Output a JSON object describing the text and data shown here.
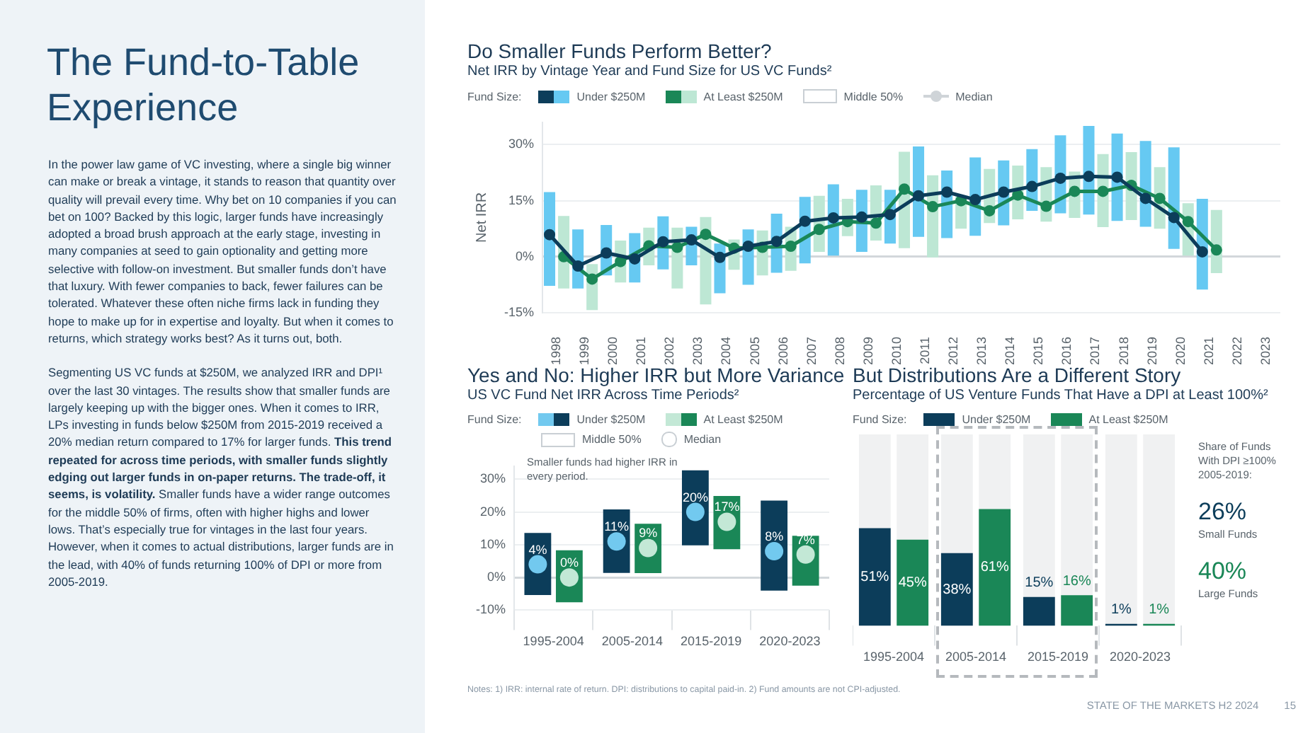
{
  "chart_data": [
    {
      "type": "other",
      "title": "The Fund-to-Table Experience",
      "annotations": [
        "In the power law game of VC investing, where a single big winner can make or break a vintage, it stands to reason that quantity over quality will prevail every time. Why bet on 10 companies if you can bet on 100? Backed by this logic, larger funds have increasingly adopted a broad brush approach at the early stage, investing in many companies at seed to gain optionality and getting more selective with follow-on investment. But smaller funds don’t have that luxury. With fewer companies to back, fewer failures can be tolerated. Whatever these often niche firms lack in funding they hope to make up for in expertise and loyalty. But when it comes to returns, which strategy works best? As it turns out, both.",
        "Segmenting US VC funds at $250M, we analyzed IRR and DPI¹ over the last 30 vintages. The results show that smaller funds are largely keeping up with the bigger ones. When it comes to IRR, LPs investing in funds below $250M from 2015-2019 received a 20% median return compared to 17% for larger funds. ",
        "This trend repeated for across time periods, with smaller funds slightly edging out larger funds in on-paper returns. The trade-off, it seems, is volatility.",
        " Smaller funds have a wider range outcomes for the middle 50% of firms, often with higher highs and lower lows. That’s especially true for vintages in the last four years. However, when it comes to actual distributions, larger funds are in the lead, with 40% of funds returning 100% of DPI or more from 2005-2019."
      ]
    },
    {
      "type": "bar",
      "title": "Do Smaller Funds Perform Better?",
      "subtitle": "Net IRR by Vintage Year and Fund Size for US VC Funds²",
      "ylabel": "Net IRR",
      "legend_title": "Fund Size:",
      "legend": "top left",
      "grid": "y",
      "marker": "circle",
      "annotations": [
        "Middle 50%",
        "Median"
      ],
      "categories": [
        "1998",
        "1999",
        "2000",
        "2001",
        "2002",
        "2003",
        "2004",
        "2005",
        "2006",
        "2007",
        "2008",
        "2009",
        "2010",
        "2011",
        "2012",
        "2013",
        "2014",
        "2015",
        "2016",
        "2017",
        "2018",
        "2019",
        "2020",
        "2021",
        "2022",
        "2023"
      ],
      "ylim": [
        -15,
        36
      ],
      "yticks": [
        {
          "value": -15,
          "label": "-15%"
        },
        {
          "value": 0,
          "label": "0%"
        },
        {
          "value": 15,
          "label": "15%"
        },
        {
          "value": 30,
          "label": "30%"
        }
      ],
      "series": [
        {
          "name": "Under $250M",
          "type": "bar",
          "color": "#66c9f2",
          "base": [
            -7.8,
            -8.5,
            -5,
            -6.9,
            -3.4,
            -2.3,
            -9.8,
            -7.5,
            -4.3,
            -1.8,
            0,
            1.3,
            3.5,
            5.3,
            5,
            5.6,
            8.4,
            12.3,
            11.6,
            11.3,
            9.6,
            8,
            2.1,
            -8.8,
            null,
            null
          ],
          "values": [
            25.1,
            15.8,
            13.5,
            13.2,
            14.2,
            10.3,
            13.3,
            14.8,
            15.8,
            17.8,
            19.4,
            16.6,
            14.4,
            24.2,
            18.1,
            21,
            17.4,
            16.5,
            20.9,
            23.7,
            23.4,
            23,
            27.2,
            24.3,
            null,
            null
          ]
        },
        {
          "name": "At Least $250M",
          "type": "bar",
          "color": "#bde7d4",
          "base": [
            -8.5,
            -14.3,
            -6.9,
            -2.3,
            -8.5,
            -12.8,
            -3.5,
            -5,
            -3.8,
            1.3,
            5.5,
            4.3,
            2.3,
            -0.2,
            7.5,
            9,
            10,
            9.4,
            10.4,
            7.9,
            9.8,
            7.5,
            0,
            -4.4,
            null,
            null
          ],
          "values": [
            19.4,
            12.3,
            11.2,
            10.1,
            16.3,
            23.4,
            8.1,
            12,
            11.8,
            15,
            10,
            14.8,
            25.8,
            22,
            8.8,
            14.5,
            14.4,
            14.6,
            12.4,
            19.6,
            18.2,
            16.5,
            14.3,
            16.9,
            null,
            null
          ]
        },
        {
          "type": "line",
          "color": "#0c3d5a",
          "values": [
            5.9,
            -2.5,
            1,
            -0.6,
            4,
            4.5,
            -0.2,
            2.8,
            4.1,
            9.5,
            10.4,
            10.6,
            11.3,
            16.3,
            17.3,
            15.3,
            17.3,
            18.8,
            21,
            21.5,
            21.3,
            15.6,
            10.5,
            1.3,
            null,
            null
          ]
        },
        {
          "type": "line",
          "color": "#1a8757",
          "values": [
            0,
            -6,
            -1.3,
            2.9,
            2.5,
            6,
            2.3,
            2.5,
            2.8,
            7.3,
            9.4,
            9,
            18.1,
            13.4,
            15,
            12.3,
            16.5,
            13.5,
            17.5,
            17.5,
            19.1,
            15.6,
            9.4,
            1.8,
            null,
            null
          ]
        }
      ]
    },
    {
      "type": "bar",
      "title": "Yes and No: Higher IRR but More Variance",
      "subtitle": "US VC Fund Net IRR Across Time Periods²",
      "legend_title": "Fund Size:",
      "legend": "top left",
      "grid": "y",
      "marker": "circle",
      "annotations": [
        "Middle 50%",
        "Median",
        "Smaller funds had higher IRR in every period."
      ],
      "categories": [
        "1995-2004",
        "2005-2014",
        "2015-2019",
        "2020-2023"
      ],
      "ylim": [
        -10,
        34
      ],
      "yticks": [
        {
          "value": -10,
          "label": "-10%"
        },
        {
          "value": 0,
          "label": "0%"
        },
        {
          "value": 10,
          "label": "10%"
        },
        {
          "value": 20,
          "label": "20%"
        },
        {
          "value": 30,
          "label": "30%"
        }
      ],
      "series": [
        {
          "name": "Under $250M",
          "type": "bar",
          "color": "#0c3d5a",
          "base": [
            -5.4,
            1.4,
            9.8,
            -4
          ],
          "values": [
            19,
            19.4,
            22.9,
            27.5
          ]
        },
        {
          "name": "At Least $250M",
          "type": "bar",
          "color": "#1a8757",
          "base": [
            -7.6,
            1.3,
            8.6,
            -2.5
          ],
          "values": [
            15.9,
            15.1,
            16.3,
            15.2
          ]
        },
        {
          "type": "scatter",
          "color": "#72c9ef",
          "x": [
            "1995-2004",
            "2005-2014",
            "2015-2019",
            "2020-2023"
          ],
          "values": [
            4,
            11,
            20,
            8
          ],
          "value_labels": [
            "4%",
            "11%",
            "20%",
            "8%"
          ]
        },
        {
          "type": "scatter",
          "color": "#c3e8d6",
          "x": [
            "1995-2004",
            "2005-2014",
            "2015-2019",
            "2020-2023"
          ],
          "values": [
            0,
            9,
            17,
            7
          ],
          "value_labels": [
            "0%",
            "9%",
            "17%",
            "7%"
          ]
        }
      ]
    },
    {
      "type": "bar",
      "title": "But Distributions Are a Different Story",
      "subtitle": "Percentage of US Venture Funds That Have a DPI at Least 100%²",
      "legend_title": "Fund Size:",
      "legend": "top",
      "tick_labels": "x",
      "ylim": [
        0,
        100
      ],
      "annotations": [
        "Share of Funds With DPI ≥100% 2005-2019:",
        "26%",
        "Small Funds",
        "40%",
        "Large Funds"
      ],
      "categories": [
        "1995-2004",
        "2005-2014",
        "2015-2019",
        "2020-2023"
      ],
      "series": [
        {
          "name": "Under $250M",
          "color": "#0c3d5a",
          "values": [
            51,
            38,
            15,
            1
          ],
          "value_labels": [
            "51%",
            "38%",
            "15%",
            "1%"
          ]
        },
        {
          "name": "At Least $250M",
          "color": "#1a8757",
          "values": [
            45,
            61,
            16,
            1
          ],
          "value_labels": [
            "45%",
            "61%",
            "16%",
            "1%"
          ]
        }
      ]
    },
    {
      "type": "other",
      "annotations": [
        "Notes: 1) IRR: internal rate of return. DPI: distributions to capital paid-in. 2) Fund amounts are not CPI-adjusted.",
        "STATE OF THE MARKETS H2 2024",
        "15"
      ]
    }
  ]
}
